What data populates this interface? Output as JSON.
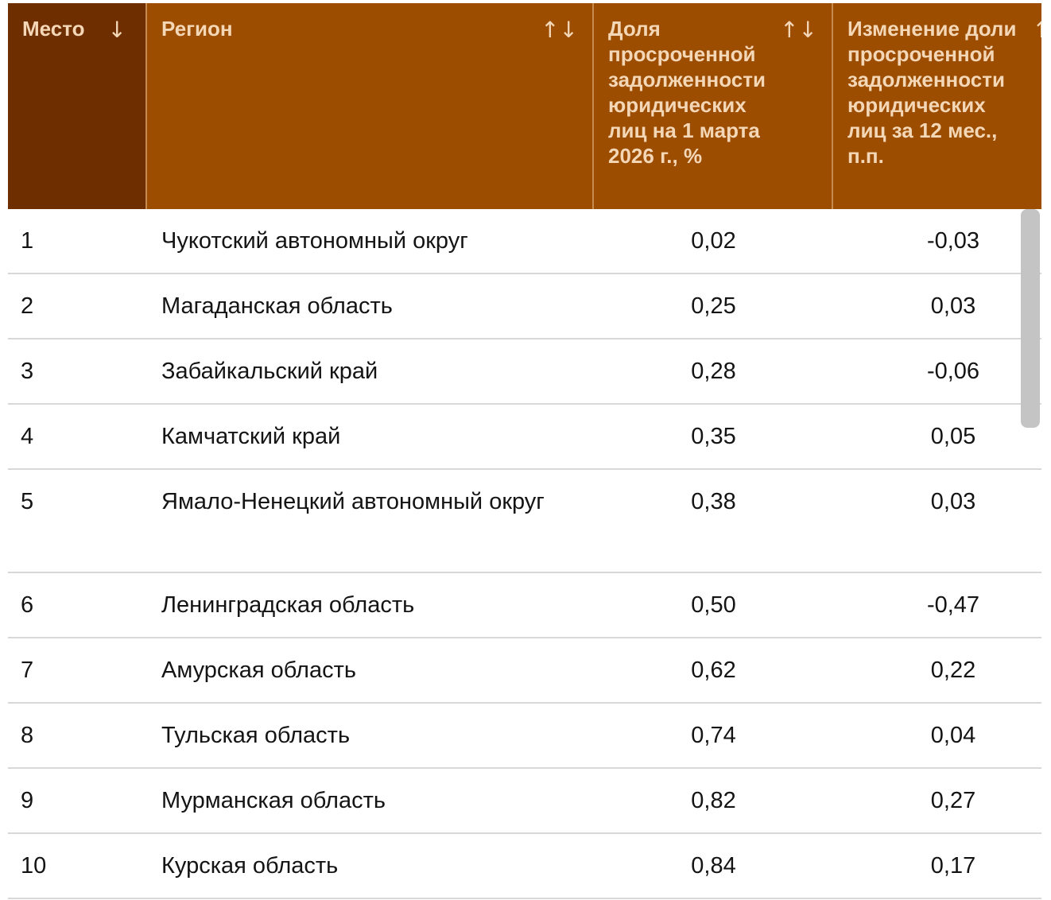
{
  "table": {
    "headers": {
      "place": "Место",
      "region": "Регион",
      "share": "Доля просроченной задолженности юридических лиц на 1 марта 2026 г., %",
      "change": "Изменение доли просроченной задолженности юридических лиц за 12 мес., п.п."
    },
    "sort_icons": {
      "place": "↓",
      "region": "↑↓",
      "share": "↑↓",
      "change": "↑"
    },
    "rows": [
      {
        "place": "1",
        "region": "Чукотский автономный округ",
        "share": "0,02",
        "change": "-0,03"
      },
      {
        "place": "2",
        "region": "Магаданская область",
        "share": "0,25",
        "change": "0,03"
      },
      {
        "place": "3",
        "region": "Забайкальский край",
        "share": "0,28",
        "change": "-0,06"
      },
      {
        "place": "4",
        "region": "Камчатский край",
        "share": "0,35",
        "change": "0,05"
      },
      {
        "place": "5",
        "region": "Ямало-Ненецкий автономный округ",
        "share": "0,38",
        "change": "0,03"
      },
      {
        "place": "6",
        "region": "Ленинградская область",
        "share": "0,50",
        "change": "-0,47"
      },
      {
        "place": "7",
        "region": "Амурская область",
        "share": "0,62",
        "change": "0,22"
      },
      {
        "place": "8",
        "region": "Тульская область",
        "share": "0,74",
        "change": "0,04"
      },
      {
        "place": "9",
        "region": "Мурманская область",
        "share": "0,82",
        "change": "0,27"
      },
      {
        "place": "10",
        "region": "Курская область",
        "share": "0,84",
        "change": "0,17"
      }
    ]
  },
  "colors": {
    "header_bg": "#9c4d00",
    "header_active_bg": "#6e2e00",
    "header_text": "#f3d7b7",
    "row_divider": "#d8d8d8",
    "scrollbar": "#c4c4c4"
  },
  "icons": {
    "sort_desc": "arrow-down-icon",
    "sort_both": "sort-arrows-icon",
    "sort_asc": "arrow-up-icon"
  }
}
